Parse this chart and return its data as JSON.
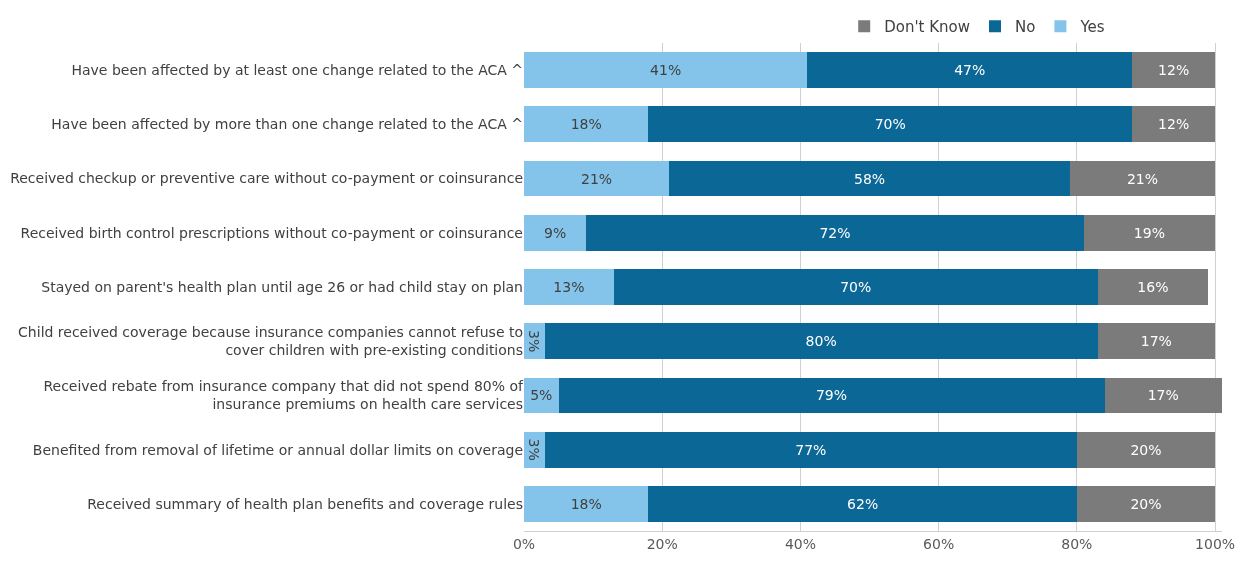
{
  "chart_data": {
    "type": "bar",
    "orientation": "horizontal",
    "stacked": true,
    "categories": [
      "Have been affected by at least one change related to the ACA ^",
      "Have been affected by more than one change related to the ACA ^",
      "Received checkup or preventive care without co-payment or coinsurance",
      "Received birth control prescriptions without co-payment or coinsurance",
      "Stayed on parent's health plan until age 26 or had child stay on plan",
      "Child received coverage because insurance companies cannot refuse to cover children with pre-existing conditions",
      "Received rebate from insurance company that did not spend 80% of insurance premiums on health care services",
      "Benefited from removal of lifetime or annual dollar limits on coverage",
      "Received summary of health plan benefits and coverage rules"
    ],
    "series": [
      {
        "name": "Yes",
        "color": "#84c4ea",
        "values": [
          41,
          18,
          21,
          9,
          13,
          3,
          5,
          3,
          18
        ],
        "value_labels": [
          "41%",
          "18%",
          "21%",
          "9%",
          "13%",
          "3%",
          "5%",
          "3%",
          "18%"
        ]
      },
      {
        "name": "No",
        "color": "#0b6896",
        "values": [
          47,
          70,
          58,
          72,
          70,
          80,
          79,
          77,
          62
        ],
        "value_labels": [
          "47%",
          "70%",
          "58%",
          "72%",
          "70%",
          "80%",
          "79%",
          "77%",
          "62%"
        ]
      },
      {
        "name": "Don't Know",
        "color": "#7b7b7b",
        "values": [
          12,
          12,
          21,
          19,
          16,
          17,
          17,
          20,
          20
        ],
        "value_labels": [
          "12%",
          "12%",
          "21%",
          "19%",
          "16%",
          "17%",
          "17%",
          "20%",
          "20%"
        ]
      }
    ],
    "xlim": [
      0,
      101
    ],
    "xticks": [
      {
        "value": 0,
        "label": "0%"
      },
      {
        "value": 20,
        "label": "20%"
      },
      {
        "value": 40,
        "label": "40%"
      },
      {
        "value": 60,
        "label": "60%"
      },
      {
        "value": 80,
        "label": "80%"
      },
      {
        "value": 100,
        "label": "100%"
      }
    ],
    "grid": "x",
    "legend": "top"
  }
}
